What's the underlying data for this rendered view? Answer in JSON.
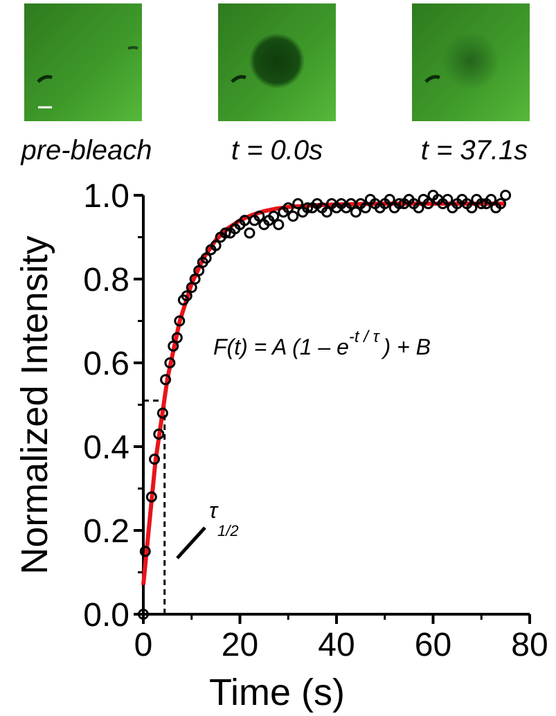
{
  "panels": [
    {
      "caption": "pre-bleach"
    },
    {
      "caption": "t = 0.0s"
    },
    {
      "caption": "t = 37.1s"
    }
  ],
  "chart_data": {
    "type": "scatter",
    "x_label": "Time (s)",
    "y_label": "Normalized Intensity",
    "xlim": [
      0,
      80
    ],
    "ylim": [
      0,
      1
    ],
    "xticks": [
      0,
      20,
      40,
      60,
      80
    ],
    "xminorticks": [
      10,
      30,
      50,
      70
    ],
    "yticks": [
      {
        "value": 0,
        "label": "0.0"
      },
      0.2,
      0.4,
      0.6,
      0.8,
      {
        "value": 1,
        "label": "1.0"
      }
    ],
    "yminorticks": [
      0.1,
      0.3,
      0.5,
      0.7,
      0.9
    ],
    "series": [
      {
        "type": "line",
        "color": "#e8141a",
        "x": [
          0,
          2.5,
          5,
          7.5,
          10,
          12.5,
          15,
          17.5,
          20,
          22.5,
          25,
          27.5,
          30,
          35,
          40,
          50,
          60,
          75
        ],
        "values": [
          0.07,
          0.364,
          0.563,
          0.698,
          0.789,
          0.851,
          0.893,
          0.921,
          0.94,
          0.953,
          0.962,
          0.968,
          0.972,
          0.976,
          0.978,
          0.98,
          0.98,
          0.98
        ]
      },
      {
        "type": "scatter",
        "color": "#000000",
        "x": [
          0,
          0.4,
          1.7,
          2.3,
          3.2,
          4.0,
          4.6,
          5.5,
          6.2,
          7.0,
          7.5,
          8.3,
          9.0,
          10,
          10.7,
          11.5,
          12.3,
          13,
          14,
          15,
          16,
          17,
          18,
          19,
          20,
          21,
          22,
          23,
          24,
          25,
          26,
          27,
          28,
          29,
          30,
          31,
          32,
          33,
          34,
          35,
          36,
          37,
          38,
          39,
          40,
          41,
          42,
          43,
          44,
          45,
          46,
          47,
          48,
          49,
          50,
          51,
          52,
          53,
          54,
          55,
          56,
          57,
          58,
          59,
          60,
          61,
          62,
          63,
          64,
          65,
          66,
          67,
          68,
          69,
          70,
          71,
          72,
          73,
          74,
          75
        ],
        "values": [
          0,
          0.15,
          0.28,
          0.37,
          0.43,
          0.48,
          0.56,
          0.6,
          0.64,
          0.66,
          0.7,
          0.75,
          0.76,
          0.78,
          0.8,
          0.82,
          0.84,
          0.85,
          0.87,
          0.88,
          0.9,
          0.91,
          0.91,
          0.92,
          0.93,
          0.94,
          0.91,
          0.94,
          0.95,
          0.93,
          0.94,
          0.95,
          0.93,
          0.96,
          0.97,
          0.95,
          0.98,
          0.96,
          0.97,
          0.97,
          0.98,
          0.97,
          0.96,
          0.98,
          0.97,
          0.98,
          0.97,
          0.98,
          0.96,
          0.98,
          0.97,
          0.99,
          0.98,
          0.97,
          0.98,
          0.99,
          0.97,
          0.98,
          0.98,
          0.99,
          0.98,
          0.97,
          0.99,
          0.98,
          1.0,
          0.99,
          0.98,
          0.99,
          0.97,
          0.98,
          0.99,
          0.98,
          0.97,
          0.99,
          0.98,
          0.98,
          0.99,
          0.97,
          0.98,
          1.0
        ]
      }
    ],
    "equation": {
      "base": "F(t) = A (1 – e",
      "exponent": "-t / τ",
      "tail": ") + B"
    },
    "half_time": {
      "x": 4.4,
      "y": 0.51
    },
    "half_time_label": {
      "symbol": "τ",
      "subscript": "1/2"
    }
  }
}
